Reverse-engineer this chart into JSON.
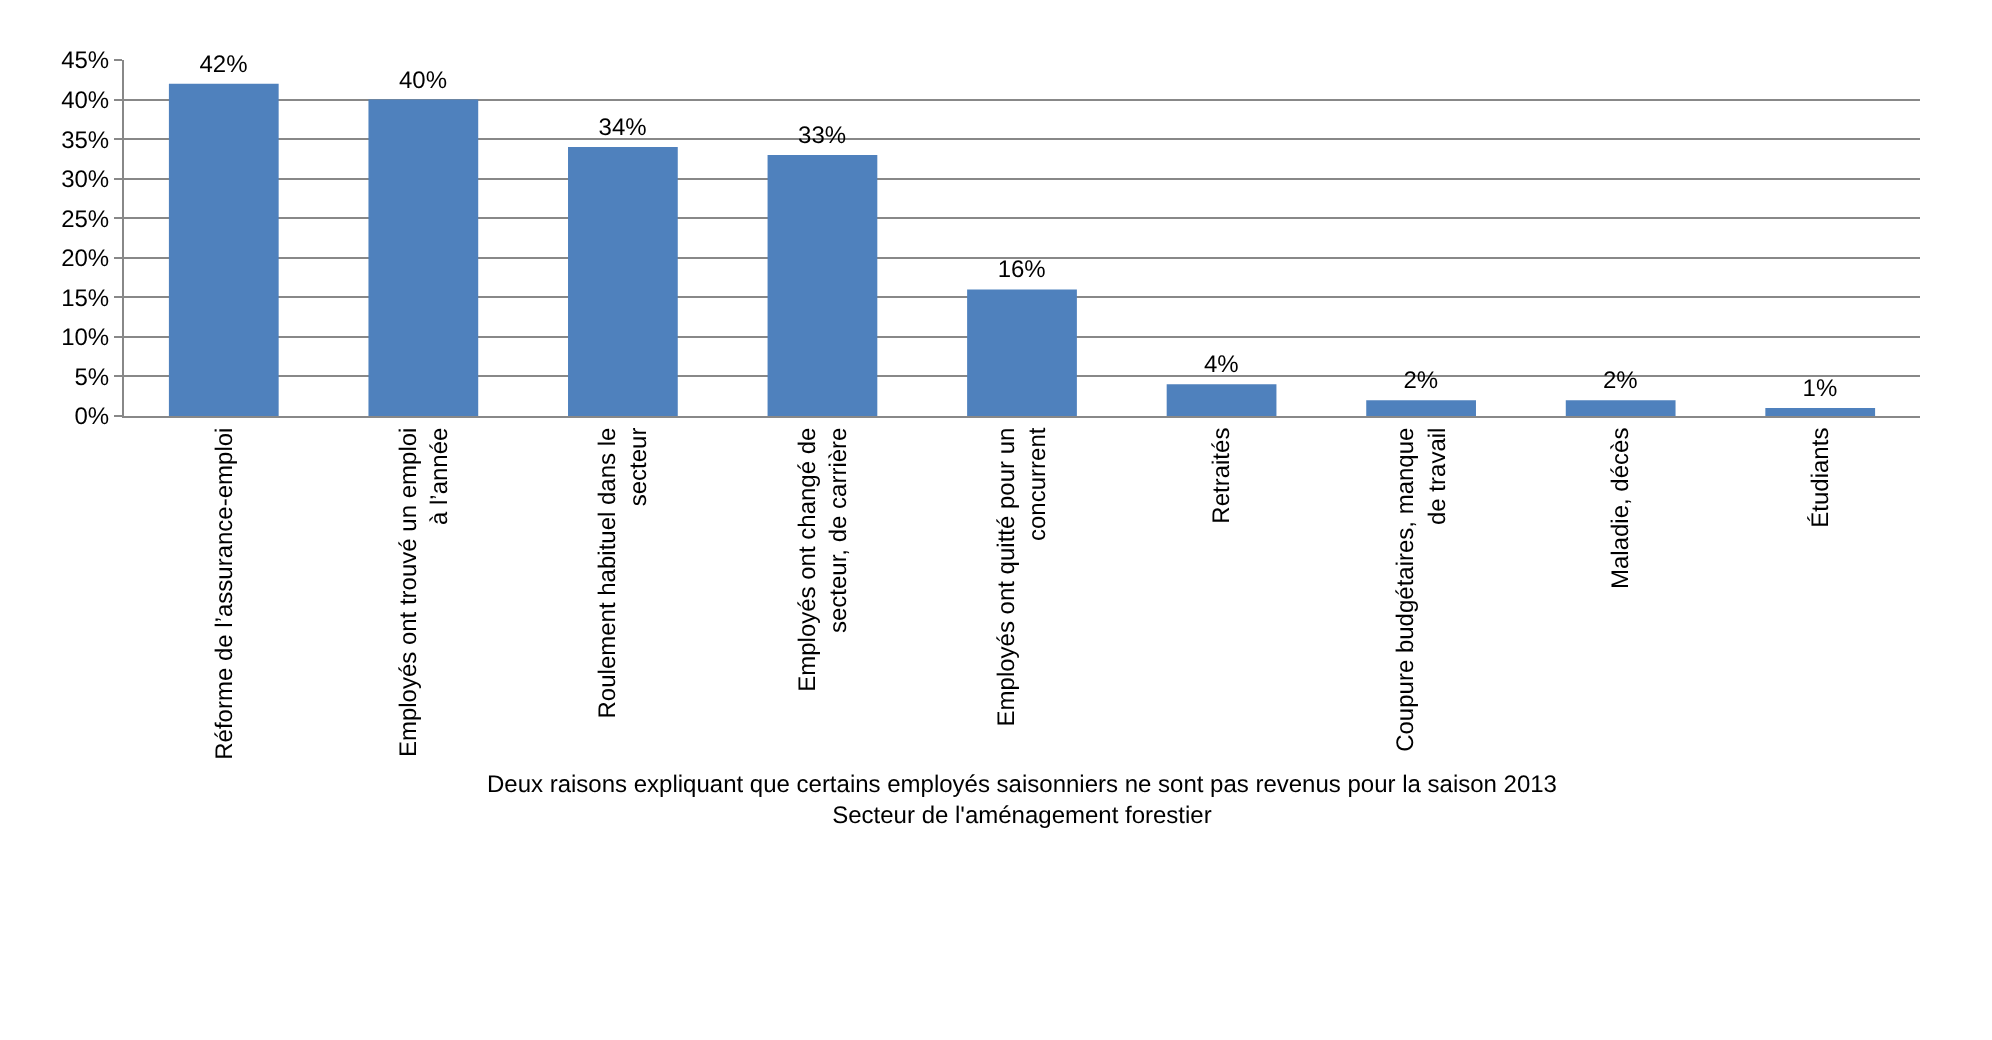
{
  "chart_data": {
    "type": "bar",
    "xlabel": "Deux raisons expliquant que certains employés saisonniers ne sont pas revenus pour la saison 2013\nSecteur de l'aménagement forestier",
    "categories": [
      "Réforme de l’assurance-emploi",
      "Employés ont trouvé un emploi à l’année",
      "Roulement habituel dans le secteur",
      "Employés ont changé de secteur, de carrière",
      "Employés ont quitté pour un concurrent",
      "Retraités",
      "Coupure budgétaires, manque de travail",
      "Maladie, décès",
      "Étudiants"
    ],
    "values": [
      42,
      40,
      34,
      33,
      16,
      4,
      2,
      2,
      1
    ],
    "value_labels": [
      "42%",
      "40%",
      "34%",
      "33%",
      "16%",
      "4%",
      "2%",
      "2%",
      "1%"
    ],
    "color": "#4f81bd",
    "ylim": [
      0,
      45
    ],
    "yticks": [
      {
        "value": 0,
        "label": "0%"
      },
      {
        "value": 5,
        "label": "5%"
      },
      {
        "value": 10,
        "label": "10%"
      },
      {
        "value": 15,
        "label": "15%"
      },
      {
        "value": 20,
        "label": "20%"
      },
      {
        "value": 25,
        "label": "25%"
      },
      {
        "value": 30,
        "label": "30%"
      },
      {
        "value": 35,
        "label": "35%"
      },
      {
        "value": 40,
        "label": "40%"
      },
      {
        "value": 45,
        "label": "45%"
      }
    ],
    "grid": "y"
  }
}
